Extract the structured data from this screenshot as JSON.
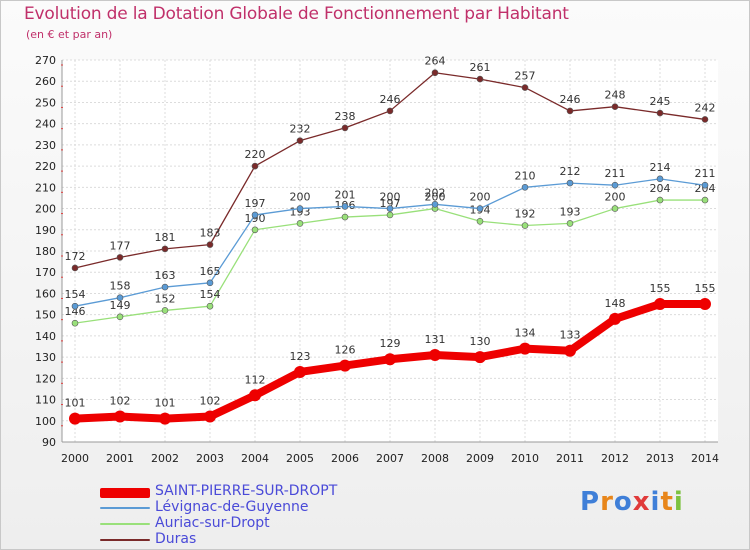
{
  "title": "Evolution de la Dotation Globale de Fonctionnement par Habitant",
  "subtitle": "(en € et par an)",
  "chart_data": {
    "type": "line",
    "title": "Evolution de la Dotation Globale de Fonctionnement par Habitant",
    "subtitle": "(en € et par an)",
    "x": [
      "2000",
      "2001",
      "2002",
      "2003",
      "2004",
      "2005",
      "2006",
      "2007",
      "2008",
      "2009",
      "2010",
      "2011",
      "2012",
      "2013",
      "2014"
    ],
    "ylim": [
      90,
      270
    ],
    "yticks": [
      90,
      100,
      110,
      120,
      130,
      140,
      150,
      160,
      170,
      180,
      190,
      200,
      210,
      220,
      230,
      240,
      250,
      260,
      270
    ],
    "grid": true,
    "legend_position": "bottom-left",
    "series": [
      {
        "name": "SAINT-PIERRE-SUR-DROPT",
        "color": "#ee0000",
        "values": [
          101,
          102,
          101,
          102,
          112,
          123,
          126,
          129,
          131,
          130,
          134,
          133,
          148,
          155,
          155
        ]
      },
      {
        "name": "Lévignac-de-Guyenne",
        "color": "#5b9bd5",
        "values": [
          154,
          158,
          163,
          165,
          197,
          200,
          201,
          200,
          202,
          200,
          210,
          212,
          211,
          214,
          211
        ]
      },
      {
        "name": "Auriac-sur-Dropt",
        "color": "#99e07a",
        "values": [
          146,
          149,
          152,
          154,
          190,
          193,
          196,
          197,
          200,
          194,
          192,
          193,
          200,
          204,
          204
        ]
      },
      {
        "name": "Duras",
        "color": "#7a2a2a",
        "values": [
          172,
          177,
          181,
          183,
          220,
          232,
          238,
          246,
          264,
          261,
          257,
          246,
          248,
          245,
          242
        ]
      }
    ]
  },
  "logo": {
    "letters": [
      "P",
      "r",
      "o",
      "x",
      "i",
      "t",
      "i"
    ],
    "colors": [
      "#3f7fd8",
      "#e8861a",
      "#3f7fd8",
      "#e03a3a",
      "#3f7fd8",
      "#e8861a",
      "#7cc23f"
    ]
  }
}
